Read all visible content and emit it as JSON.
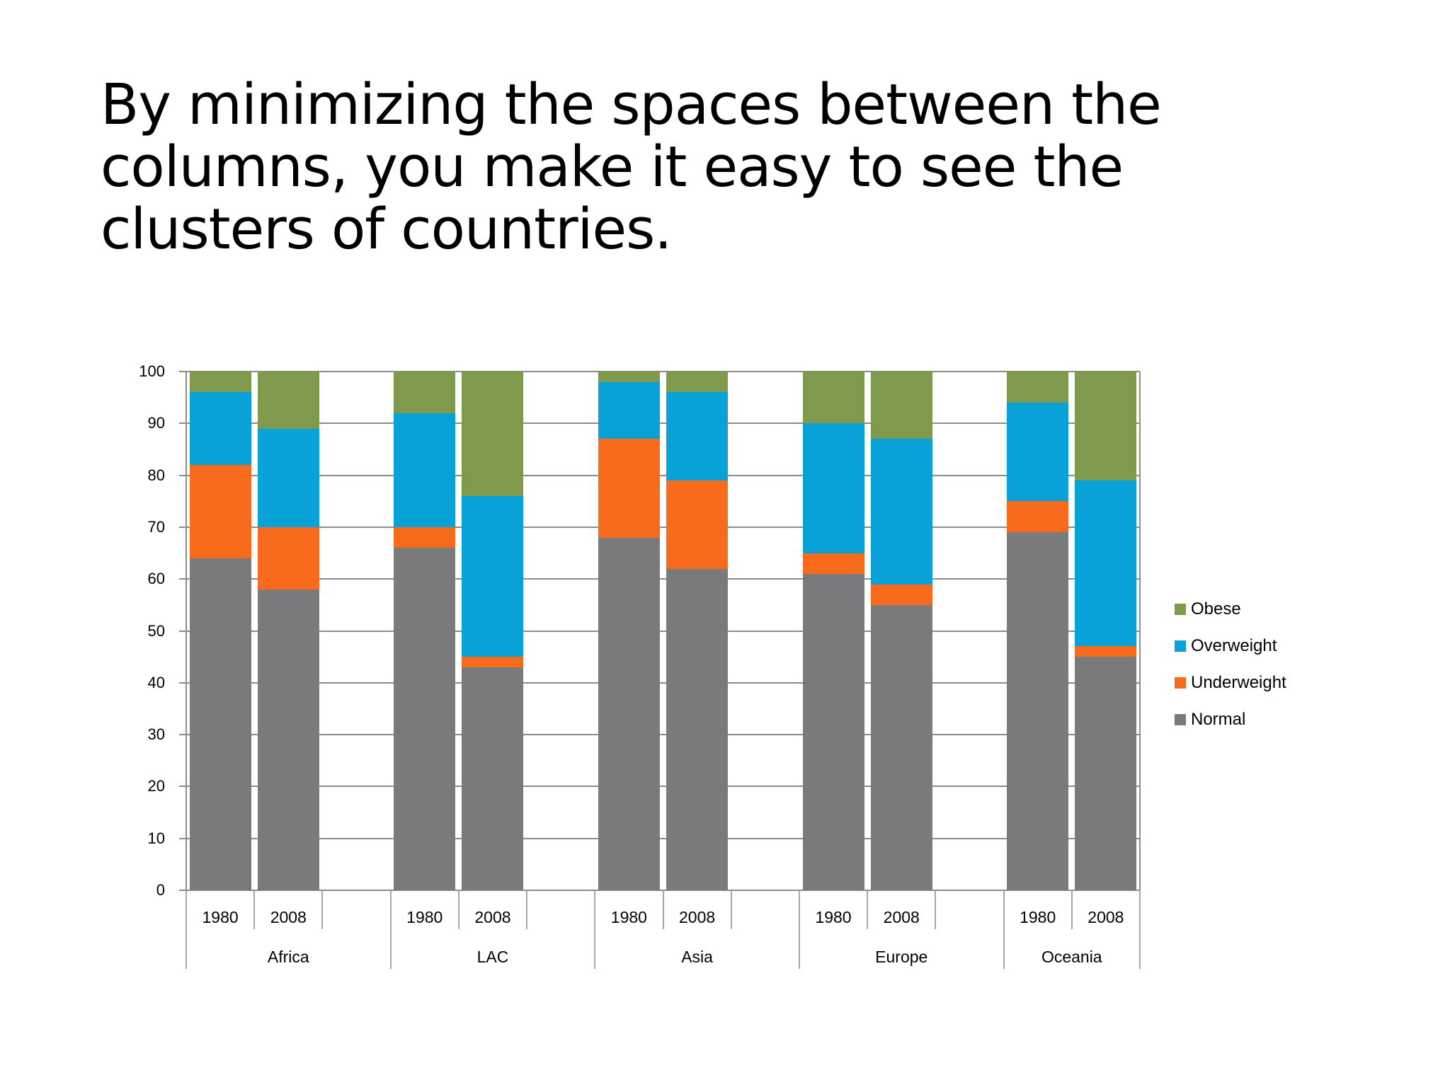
{
  "slide": {
    "title": "By minimizing the spaces between the columns, you make it easy to see the clusters of countries.",
    "title_lines": [
      "By minimizing the spaces between the",
      "columns, you make it easy to see the",
      "clusters of countries."
    ]
  },
  "colors": {
    "Obese": "#7f9a4c",
    "Overweight": "#08a2d8",
    "Underweight": "#f96b1c",
    "Normal": "#7a7a7d",
    "grid": "#8c8c8c"
  },
  "chart_data": {
    "type": "bar",
    "stacked": true,
    "title": "",
    "xlabel": "",
    "ylabel": "",
    "ylim": [
      0,
      100
    ],
    "yticks": [
      0,
      10,
      20,
      30,
      40,
      50,
      60,
      70,
      80,
      90,
      100
    ],
    "grid": true,
    "legend_position": "right",
    "groups": [
      "Africa",
      "LAC",
      "Asia",
      "Europe",
      "Oceania"
    ],
    "categories": [
      "Africa 1980",
      "Africa 2008",
      "LAC 1980",
      "LAC 2008",
      "Asia 1980",
      "Asia 2008",
      "Europe 1980",
      "Europe 2008",
      "Oceania 1980",
      "Oceania 2008"
    ],
    "category_years": [
      "1980",
      "2008",
      "1980",
      "2008",
      "1980",
      "2008",
      "1980",
      "2008",
      "1980",
      "2008"
    ],
    "series": [
      {
        "name": "Normal",
        "values": [
          64,
          58,
          66,
          43,
          68,
          62,
          61,
          55,
          69,
          45
        ]
      },
      {
        "name": "Underweight",
        "values": [
          18,
          12,
          4,
          2,
          19,
          17,
          4,
          4,
          6,
          2
        ]
      },
      {
        "name": "Overweight",
        "values": [
          14,
          19,
          22,
          31,
          11,
          17,
          25,
          28,
          19,
          32
        ]
      },
      {
        "name": "Obese",
        "values": [
          4,
          11,
          8,
          24,
          2,
          4,
          10,
          13,
          6,
          21
        ]
      }
    ],
    "legend": [
      "Obese",
      "Overweight",
      "Underweight",
      "Normal"
    ]
  }
}
